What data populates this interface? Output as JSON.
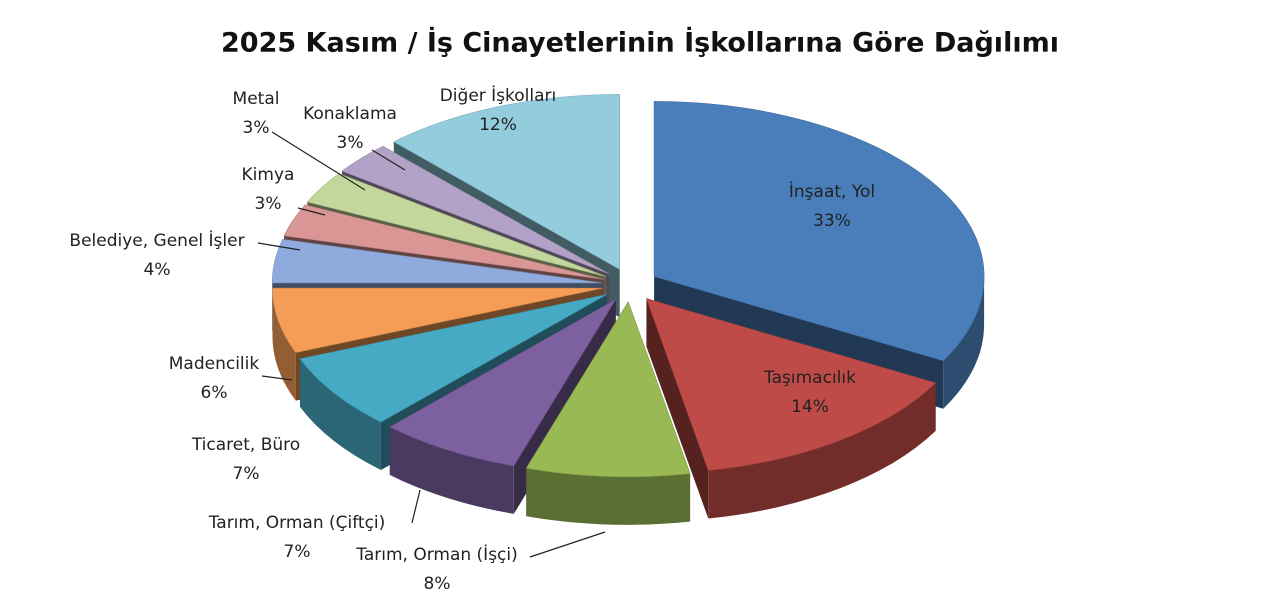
{
  "chart_data": {
    "type": "pie",
    "title": "2025 Kasım / İş Cinayetlerinin İşkollarına Göre Dağılımı",
    "categories": [
      "İnşaat, Yol",
      "Taşımacılık",
      "Tarım, Orman (İşçi)",
      "Tarım, Orman (Çiftçi)",
      "Ticaret, Büro",
      "Madencilik",
      "Belediye, Genel İşler",
      "Kimya",
      "Metal",
      "Konaklama",
      "Diğer İşkolları"
    ],
    "values": [
      33,
      14,
      8,
      7,
      7,
      6,
      4,
      3,
      3,
      3,
      12
    ],
    "value_labels": [
      "33%",
      "14%",
      "8%",
      "7%",
      "7%",
      "6%",
      "4%",
      "3%",
      "3%",
      "3%",
      "12%"
    ],
    "colors": [
      "#4a7ebb",
      "#be4b48",
      "#98b954",
      "#7d60a0",
      "#46aac5",
      "#f59d56",
      "#8faadc",
      "#d99694",
      "#c3d69b",
      "#b3a2c7",
      "#93cddd"
    ]
  }
}
